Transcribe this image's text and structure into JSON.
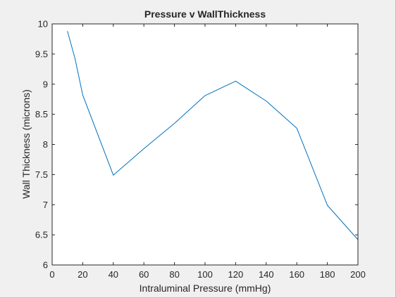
{
  "chart_data": {
    "type": "line",
    "title": "Pressure v WallThickness",
    "xlabel": "Intraluminal Pressure (mmHg)",
    "ylabel": "Wall Thickness (microns)",
    "xlim": [
      0,
      200
    ],
    "ylim": [
      6,
      10
    ],
    "xticks": [
      0,
      20,
      40,
      60,
      80,
      100,
      120,
      140,
      160,
      180,
      200
    ],
    "yticks": [
      6,
      6.5,
      7,
      7.5,
      8,
      8.5,
      9,
      9.5,
      10
    ],
    "x": [
      10,
      15,
      20,
      40,
      60,
      80,
      100,
      120,
      140,
      160,
      180,
      200
    ],
    "y": [
      9.88,
      9.42,
      8.82,
      7.49,
      7.93,
      8.35,
      8.81,
      9.05,
      8.72,
      8.27,
      6.99,
      6.42
    ],
    "grid": false,
    "series_color": "#0072bd",
    "axes_color": "#262626",
    "background": "#ffffff"
  }
}
